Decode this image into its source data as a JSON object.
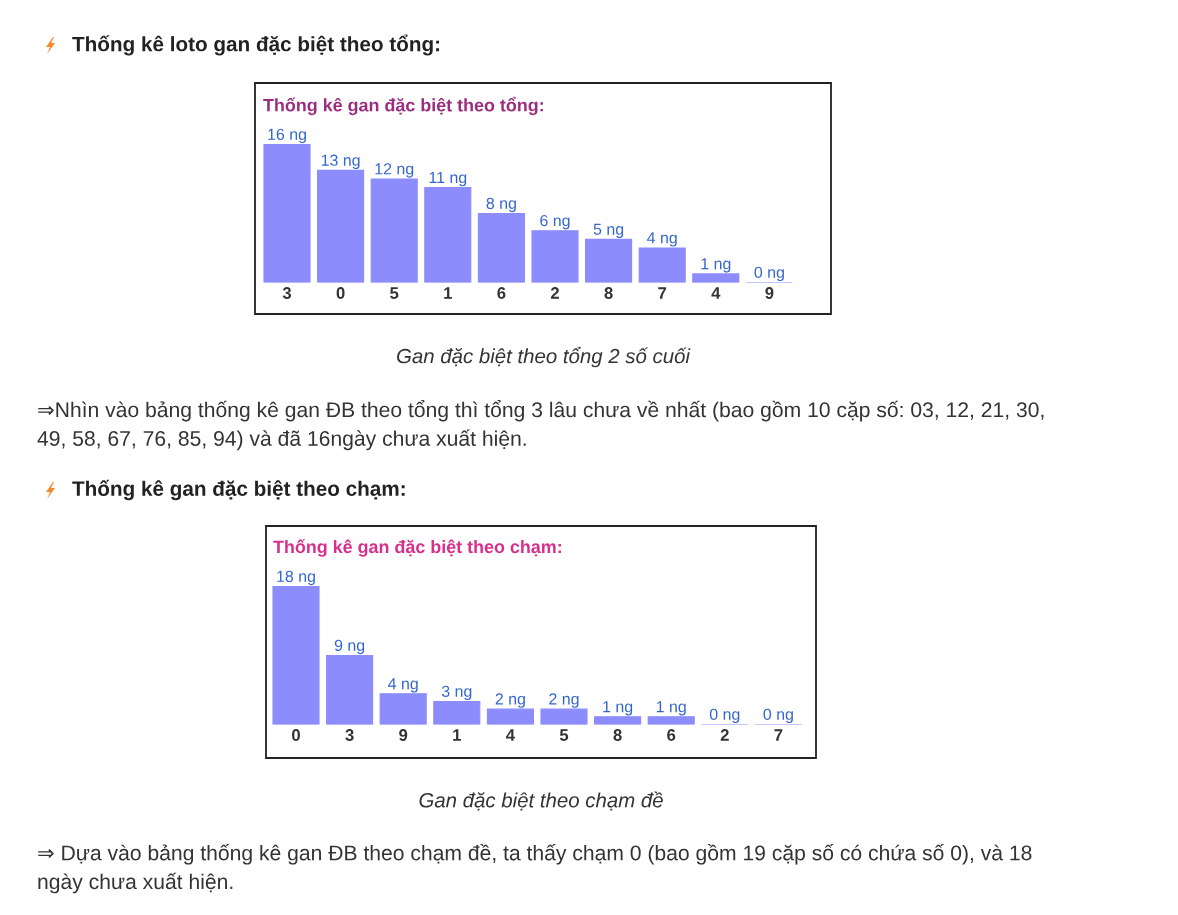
{
  "chart_data": [
    {
      "type": "bar",
      "title": "Thống kê gan đặc biệt theo tổng:",
      "categories": [
        "3",
        "0",
        "5",
        "1",
        "6",
        "2",
        "8",
        "7",
        "4",
        "9"
      ],
      "values": [
        16,
        13,
        12,
        11,
        8,
        6,
        5,
        4,
        1,
        0
      ],
      "color": "#8c8cfc",
      "value_labels": [
        "16 ng",
        "13 ng",
        "12 ng",
        "11 ng",
        "8 ng",
        "6 ng",
        "5 ng",
        "4 ng",
        "1 ng",
        "0 ng"
      ],
      "annotations": [
        "Thống kê loto gan đặc biệt theo tổng:",
        "Gan đặc biệt theo tổng 2 số cuối",
        "⇒Nhìn vào bảng thống kê gan ĐB theo tổng thì tổng 3 lâu chưa về nhất (bao gồm 10 cặp số: 03, 12, 21, 30, 49, 58, 67, 76, 85, 94) và đã 16ngày chưa xuất hiện."
      ]
    },
    {
      "type": "bar",
      "title": "Thống kê gan đặc biệt theo chạm:",
      "categories": [
        "0",
        "3",
        "9",
        "1",
        "4",
        "5",
        "8",
        "6",
        "2",
        "7"
      ],
      "values": [
        18,
        9,
        4,
        3,
        2,
        2,
        1,
        1,
        0,
        0
      ],
      "color": "#8c8cfc",
      "value_labels": [
        "18 ng",
        "9 ng",
        "4 ng",
        "3 ng",
        "2 ng",
        "2 ng",
        "1 ng",
        "1 ng",
        "0 ng",
        "0 ng"
      ],
      "annotations": [
        "Thống kê gan đặc biệt theo chạm:",
        "Gan đặc biệt theo chạm đề",
        "⇒ Dựa vào bảng thống kê gan ĐB theo chạm đề, ta thấy chạm 0 (bao gồm 19 cặp số có chứa số 0), và 18 ngày chưa xuất hiện."
      ]
    }
  ]
}
